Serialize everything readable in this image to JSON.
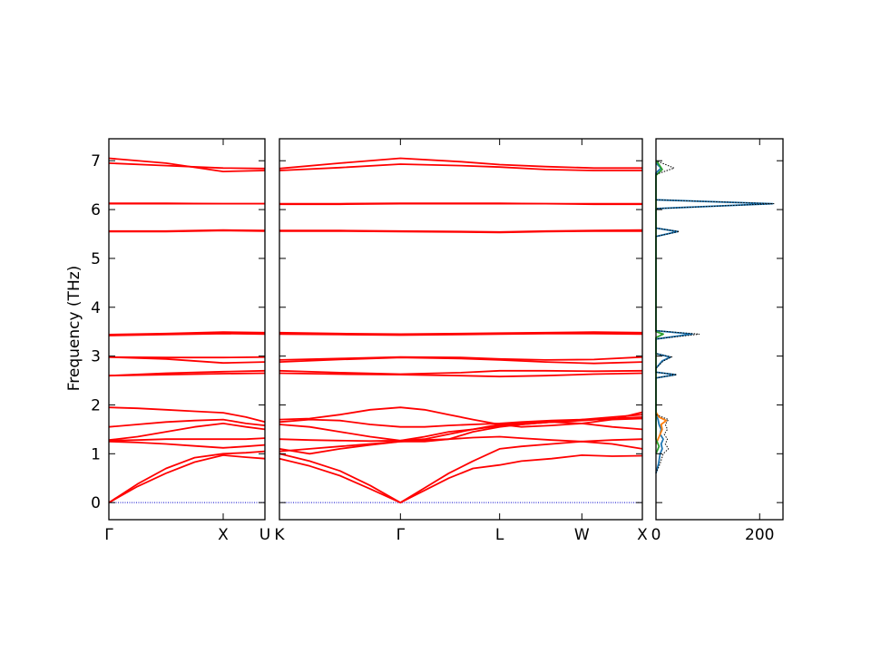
{
  "chart_data": {
    "type": "line",
    "ylabel": "Frequency (THz)",
    "ylim": [
      -0.35,
      7.45
    ],
    "yticks": [
      0,
      1,
      2,
      3,
      4,
      5,
      6,
      7
    ],
    "band_color": "#ff0000",
    "zero_line_color": "#0000cc",
    "segments": [
      {
        "id": "gamma-x-u",
        "xlim": [
          0,
          1.365
        ],
        "xticks": [
          {
            "x": 0,
            "label": "Γ"
          },
          {
            "x": 1.0,
            "label": "X"
          },
          {
            "x": 1.365,
            "label": "U"
          }
        ],
        "bands": [
          {
            "x": [
              0,
              0.25,
              0.5,
              0.75,
              1.0,
              1.2,
              1.365
            ],
            "y": [
              0,
              0.33,
              0.6,
              0.83,
              0.97,
              0.93,
              0.9
            ]
          },
          {
            "x": [
              0,
              0.25,
              0.5,
              0.75,
              1.0,
              1.2,
              1.365
            ],
            "y": [
              0,
              0.38,
              0.7,
              0.92,
              1.0,
              1.02,
              1.05
            ]
          },
          {
            "x": [
              0,
              0.25,
              0.5,
              0.75,
              1.0,
              1.2,
              1.365
            ],
            "y": [
              1.25,
              1.23,
              1.2,
              1.16,
              1.12,
              1.15,
              1.18
            ]
          },
          {
            "x": [
              0,
              0.25,
              0.5,
              0.75,
              1.0,
              1.2,
              1.365
            ],
            "y": [
              1.27,
              1.28,
              1.3,
              1.3,
              1.3,
              1.3,
              1.32
            ]
          },
          {
            "x": [
              0,
              0.25,
              0.5,
              0.75,
              1.0,
              1.2,
              1.365
            ],
            "y": [
              1.28,
              1.35,
              1.45,
              1.55,
              1.62,
              1.55,
              1.5
            ]
          },
          {
            "x": [
              0,
              0.25,
              0.5,
              0.75,
              1.0,
              1.2,
              1.365
            ],
            "y": [
              1.55,
              1.6,
              1.65,
              1.68,
              1.7,
              1.62,
              1.58
            ]
          },
          {
            "x": [
              0,
              0.25,
              0.5,
              0.75,
              1.0,
              1.2,
              1.365
            ],
            "y": [
              1.95,
              1.93,
              1.9,
              1.87,
              1.84,
              1.75,
              1.65
            ]
          },
          {
            "x": [
              0,
              0.5,
              1.0,
              1.365
            ],
            "y": [
              2.6,
              2.62,
              2.64,
              2.65
            ]
          },
          {
            "x": [
              0,
              0.5,
              1.0,
              1.365
            ],
            "y": [
              2.6,
              2.65,
              2.68,
              2.7
            ]
          },
          {
            "x": [
              0,
              0.5,
              1.0,
              1.365
            ],
            "y": [
              2.98,
              2.94,
              2.86,
              2.88
            ]
          },
          {
            "x": [
              0,
              0.5,
              1.0,
              1.365
            ],
            "y": [
              2.98,
              2.97,
              2.97,
              2.98
            ]
          },
          {
            "x": [
              0,
              0.5,
              1.0,
              1.365
            ],
            "y": [
              3.42,
              3.44,
              3.46,
              3.45
            ]
          },
          {
            "x": [
              0,
              0.5,
              1.0,
              1.365
            ],
            "y": [
              3.44,
              3.46,
              3.49,
              3.48
            ]
          },
          {
            "x": [
              0,
              0.5,
              1.0,
              1.365
            ],
            "y": [
              5.55,
              5.55,
              5.57,
              5.56
            ]
          },
          {
            "x": [
              0,
              0.5,
              1.0,
              1.365
            ],
            "y": [
              5.56,
              5.56,
              5.58,
              5.57
            ]
          },
          {
            "x": [
              0,
              0.5,
              1.0,
              1.365
            ],
            "y": [
              6.12,
              6.12,
              6.12,
              6.12
            ]
          },
          {
            "x": [
              0,
              0.5,
              1.0,
              1.365
            ],
            "y": [
              6.13,
              6.13,
              6.12,
              6.12
            ]
          },
          {
            "x": [
              0,
              0.5,
              1.0,
              1.365
            ],
            "y": [
              6.95,
              6.9,
              6.85,
              6.84
            ]
          },
          {
            "x": [
              0,
              0.5,
              1.0,
              1.365
            ],
            "y": [
              7.05,
              6.95,
              6.78,
              6.8
            ]
          }
        ]
      },
      {
        "id": "k-gamma-l-w-x",
        "xlim": [
          0,
          3.0
        ],
        "xticks": [
          {
            "x": 0,
            "label": "K"
          },
          {
            "x": 1.0,
            "label": "Γ"
          },
          {
            "x": 1.82,
            "label": "L"
          },
          {
            "x": 2.5,
            "label": "W"
          },
          {
            "x": 3.0,
            "label": "X"
          }
        ],
        "bands": [
          {
            "x": [
              0,
              0.25,
              0.5,
              0.75,
              1.0,
              1.2,
              1.4,
              1.6,
              1.82,
              2.0,
              2.25,
              2.5,
              2.75,
              3.0
            ],
            "y": [
              0.9,
              0.75,
              0.55,
              0.28,
              0,
              0.25,
              0.5,
              0.7,
              0.77,
              0.85,
              0.9,
              0.97,
              0.95,
              0.96
            ]
          },
          {
            "x": [
              0,
              0.25,
              0.5,
              0.75,
              1.0,
              1.2,
              1.4,
              1.6,
              1.82,
              2.0,
              2.25,
              2.5,
              2.75,
              3.0
            ],
            "y": [
              1.0,
              0.85,
              0.65,
              0.35,
              0,
              0.3,
              0.6,
              0.85,
              1.1,
              1.15,
              1.2,
              1.25,
              1.2,
              1.1
            ]
          },
          {
            "x": [
              0,
              0.25,
              0.5,
              0.75,
              1.0,
              1.2,
              1.4,
              1.6,
              1.82,
              2.0,
              2.25,
              2.5,
              2.75,
              3.0
            ],
            "y": [
              1.05,
              1.1,
              1.15,
              1.2,
              1.25,
              1.28,
              1.3,
              1.33,
              1.35,
              1.32,
              1.28,
              1.25,
              1.28,
              1.3
            ]
          },
          {
            "x": [
              0,
              0.25,
              0.5,
              0.75,
              1.0,
              1.2,
              1.4,
              1.6,
              1.82,
              2.0,
              2.25,
              2.5,
              2.75,
              3.0
            ],
            "y": [
              1.1,
              1.0,
              1.1,
              1.18,
              1.25,
              1.25,
              1.3,
              1.45,
              1.55,
              1.6,
              1.65,
              1.7,
              1.7,
              1.72
            ]
          },
          {
            "x": [
              0,
              0.25,
              0.5,
              0.75,
              1.0,
              1.2,
              1.4,
              1.6,
              1.82,
              2.0,
              2.25,
              2.5,
              2.75,
              3.0
            ],
            "y": [
              1.3,
              1.28,
              1.27,
              1.26,
              1.27,
              1.3,
              1.4,
              1.5,
              1.6,
              1.62,
              1.65,
              1.68,
              1.72,
              1.75
            ]
          },
          {
            "x": [
              0,
              0.25,
              0.5,
              0.75,
              1.0,
              1.2,
              1.4,
              1.6,
              1.82,
              2.0,
              2.25,
              2.5,
              2.75,
              3.0
            ],
            "y": [
              1.6,
              1.55,
              1.45,
              1.35,
              1.27,
              1.35,
              1.45,
              1.5,
              1.57,
              1.6,
              1.65,
              1.62,
              1.55,
              1.5
            ]
          },
          {
            "x": [
              0,
              0.25,
              0.5,
              0.75,
              1.0,
              1.2,
              1.4,
              1.6,
              1.82,
              2.0,
              2.25,
              2.5,
              2.75,
              3.0
            ],
            "y": [
              1.65,
              1.7,
              1.68,
              1.6,
              1.55,
              1.55,
              1.58,
              1.6,
              1.62,
              1.65,
              1.68,
              1.7,
              1.75,
              1.8
            ]
          },
          {
            "x": [
              0,
              0.25,
              0.5,
              0.75,
              1.0,
              1.2,
              1.4,
              1.6,
              1.82,
              2.0,
              2.25,
              2.5,
              2.75,
              3.0
            ],
            "y": [
              1.7,
              1.72,
              1.8,
              1.9,
              1.95,
              1.9,
              1.8,
              1.7,
              1.6,
              1.55,
              1.58,
              1.62,
              1.7,
              1.85
            ]
          },
          {
            "x": [
              0,
              0.5,
              1.0,
              1.5,
              1.82,
              2.2,
              2.6,
              3.0
            ],
            "y": [
              2.65,
              2.63,
              2.62,
              2.6,
              2.58,
              2.6,
              2.63,
              2.65
            ]
          },
          {
            "x": [
              0,
              0.5,
              1.0,
              1.5,
              1.82,
              2.2,
              2.6,
              3.0
            ],
            "y": [
              2.7,
              2.66,
              2.63,
              2.66,
              2.7,
              2.7,
              2.69,
              2.7
            ]
          },
          {
            "x": [
              0,
              0.5,
              1.0,
              1.5,
              1.82,
              2.2,
              2.6,
              3.0
            ],
            "y": [
              2.88,
              2.93,
              2.97,
              2.95,
              2.92,
              2.88,
              2.85,
              2.88
            ]
          },
          {
            "x": [
              0,
              0.5,
              1.0,
              1.5,
              1.82,
              2.2,
              2.6,
              3.0
            ],
            "y": [
              2.92,
              2.95,
              2.98,
              2.97,
              2.94,
              2.92,
              2.93,
              2.98
            ]
          },
          {
            "x": [
              0,
              0.5,
              1.0,
              1.5,
              1.82,
              2.2,
              2.6,
              3.0
            ],
            "y": [
              3.45,
              3.44,
              3.43,
              3.44,
              3.45,
              3.46,
              3.46,
              3.45
            ]
          },
          {
            "x": [
              0,
              0.5,
              1.0,
              1.5,
              1.82,
              2.2,
              2.6,
              3.0
            ],
            "y": [
              3.48,
              3.46,
              3.45,
              3.46,
              3.47,
              3.48,
              3.49,
              3.48
            ]
          },
          {
            "x": [
              0,
              0.5,
              1.0,
              1.5,
              1.82,
              2.2,
              2.6,
              3.0
            ],
            "y": [
              5.56,
              5.56,
              5.55,
              5.54,
              5.53,
              5.55,
              5.56,
              5.56
            ]
          },
          {
            "x": [
              0,
              0.5,
              1.0,
              1.5,
              1.82,
              2.2,
              2.6,
              3.0
            ],
            "y": [
              5.57,
              5.57,
              5.56,
              5.55,
              5.54,
              5.56,
              5.57,
              5.58
            ]
          },
          {
            "x": [
              0,
              0.5,
              1.0,
              1.5,
              1.82,
              2.2,
              2.6,
              3.0
            ],
            "y": [
              6.11,
              6.11,
              6.12,
              6.12,
              6.12,
              6.12,
              6.11,
              6.11
            ]
          },
          {
            "x": [
              0,
              0.5,
              1.0,
              1.5,
              1.82,
              2.2,
              2.6,
              3.0
            ],
            "y": [
              6.12,
              6.12,
              6.13,
              6.13,
              6.13,
              6.12,
              6.12,
              6.12
            ]
          },
          {
            "x": [
              0,
              0.5,
              1.0,
              1.5,
              1.82,
              2.2,
              2.6,
              3.0
            ],
            "y": [
              6.8,
              6.86,
              6.93,
              6.9,
              6.87,
              6.82,
              6.8,
              6.8
            ]
          },
          {
            "x": [
              0,
              0.5,
              1.0,
              1.5,
              1.82,
              2.2,
              2.6,
              3.0
            ],
            "y": [
              6.84,
              6.95,
              7.05,
              6.98,
              6.92,
              6.88,
              6.85,
              6.85
            ]
          }
        ]
      }
    ],
    "dos": {
      "type": "area",
      "xlim": [
        0,
        245
      ],
      "xticks": [
        0,
        200
      ],
      "xticklabels": [
        "0",
        "200"
      ],
      "curves": [
        {
          "color": "#1f77b4",
          "y": [
            0.6,
            0.8,
            1.0,
            1.1,
            1.2,
            1.3,
            1.4,
            1.5,
            1.6,
            1.7,
            1.8,
            2.55,
            2.62,
            2.67,
            2.75,
            2.9,
            2.98,
            3.05,
            3.35,
            3.45,
            3.52,
            5.45,
            5.55,
            5.62,
            6.02,
            6.12,
            6.2,
            6.75,
            6.85,
            6.95
          ],
          "values": [
            0,
            5,
            8,
            12,
            10,
            14,
            8,
            10,
            6,
            4,
            0,
            0,
            38,
            0,
            0,
            12,
            28,
            0,
            0,
            70,
            0,
            0,
            42,
            0,
            0,
            225,
            0,
            0,
            10,
            0
          ]
        },
        {
          "color": "#ff7f0e",
          "y": [
            1.2,
            1.4,
            1.5,
            1.6,
            1.68,
            1.75,
            1.85
          ],
          "values": [
            0,
            8,
            12,
            10,
            20,
            6,
            0
          ]
        },
        {
          "color": "#2ca02c",
          "y": [
            1.0,
            1.15,
            1.3,
            3.38,
            3.45,
            3.5,
            6.7,
            6.82,
            6.95,
            7.0
          ],
          "values": [
            0,
            6,
            0,
            0,
            14,
            0,
            0,
            12,
            4,
            0
          ]
        }
      ],
      "total": {
        "y": [
          0.6,
          0.8,
          1.0,
          1.1,
          1.2,
          1.3,
          1.4,
          1.5,
          1.6,
          1.7,
          1.8,
          2.55,
          2.62,
          2.67,
          2.75,
          2.9,
          2.98,
          3.05,
          3.35,
          3.45,
          3.52,
          5.45,
          5.55,
          5.62,
          6.02,
          6.12,
          6.2,
          6.72,
          6.85,
          6.95,
          7.0
        ],
        "values": [
          0,
          8,
          14,
          24,
          18,
          22,
          16,
          22,
          18,
          24,
          0,
          0,
          40,
          0,
          0,
          14,
          30,
          0,
          0,
          84,
          0,
          0,
          45,
          0,
          0,
          228,
          0,
          0,
          35,
          12,
          0
        ]
      }
    }
  }
}
